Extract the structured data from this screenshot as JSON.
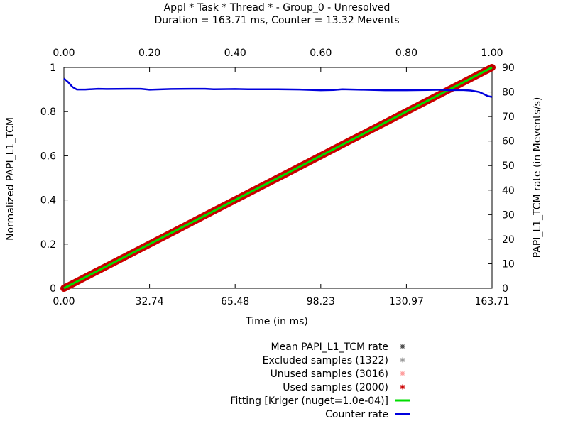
{
  "chart_data": {
    "type": "line",
    "title": "Appl * Task * Thread * - Group_0 - Unresolved",
    "subtitle": "Duration = 163.71 ms, Counter = 13.32 Mevents",
    "xlabel": "Time (in ms)",
    "ylabel": "Normalized PAPI_L1_TCM",
    "y2label": "PAPI_L1_TCM rate (in Mevents/s)",
    "xlim": [
      0,
      163.71
    ],
    "ylim": [
      0,
      1
    ],
    "x2lim": [
      0,
      1
    ],
    "y2lim": [
      0,
      90
    ],
    "x_ticks": [
      "0.00",
      "32.74",
      "65.48",
      "98.23",
      "130.97",
      "163.71"
    ],
    "x2_ticks": [
      "0.00",
      "0.20",
      "0.40",
      "0.60",
      "0.80",
      "1.00"
    ],
    "y_ticks": [
      "0",
      "0.2",
      "0.4",
      "0.6",
      "0.8",
      "1"
    ],
    "y2_ticks": [
      "0",
      "10",
      "20",
      "30",
      "40",
      "50",
      "60",
      "70",
      "80",
      "90"
    ],
    "grid": false,
    "legend_position": "bottom",
    "legend": [
      {
        "label": "Mean PAPI_L1_TCM rate",
        "symbol": "star",
        "color": "#444444"
      },
      {
        "label": "Excluded samples (1322)",
        "symbol": "star",
        "color": "#999999"
      },
      {
        "label": "Unused samples (3016)",
        "symbol": "star",
        "color": "#ff9999"
      },
      {
        "label": "Used samples (2000)",
        "symbol": "star",
        "color": "#cc0000"
      },
      {
        "label": "Fitting [Kriger (nuget=1.0e-04)]",
        "symbol": "line",
        "color": "#00dd00"
      },
      {
        "label": "Counter rate",
        "symbol": "line",
        "color": "#0000dd"
      }
    ],
    "series": [
      {
        "name": "Used samples (2000)",
        "color": "#cc0000",
        "axis": "x2y1",
        "x": [
          0.0,
          0.05,
          0.1,
          0.15,
          0.2,
          0.25,
          0.3,
          0.35,
          0.4,
          0.45,
          0.5,
          0.55,
          0.6,
          0.65,
          0.7,
          0.75,
          0.8,
          0.85,
          0.9,
          0.95,
          1.0
        ],
        "y": [
          0.0,
          0.05,
          0.1,
          0.15,
          0.2,
          0.25,
          0.3,
          0.35,
          0.4,
          0.45,
          0.5,
          0.55,
          0.6,
          0.65,
          0.7,
          0.75,
          0.8,
          0.85,
          0.9,
          0.95,
          1.0
        ]
      },
      {
        "name": "Fitting [Kriger (nuget=1.0e-04)]",
        "color": "#00dd00",
        "axis": "x2y1",
        "x": [
          0.0,
          1.0
        ],
        "y": [
          0.0,
          1.0
        ]
      },
      {
        "name": "Counter rate",
        "color": "#0000dd",
        "axis": "x2y2",
        "x": [
          0.0,
          0.01,
          0.02,
          0.03,
          0.05,
          0.08,
          0.1,
          0.15,
          0.18,
          0.2,
          0.25,
          0.3,
          0.33,
          0.35,
          0.4,
          0.43,
          0.45,
          0.5,
          0.55,
          0.6,
          0.63,
          0.65,
          0.7,
          0.75,
          0.8,
          0.85,
          0.88,
          0.9,
          0.93,
          0.95,
          0.97,
          0.98,
          0.99,
          1.0
        ],
        "y": [
          85.5,
          84,
          82,
          81,
          81,
          81.3,
          81.2,
          81.3,
          81.3,
          80.9,
          81.2,
          81.3,
          81.3,
          81.1,
          81.2,
          81.1,
          81.1,
          81.1,
          81.0,
          80.7,
          80.8,
          81.1,
          80.9,
          80.7,
          80.7,
          80.8,
          80.9,
          80.7,
          80.8,
          80.6,
          80.0,
          79.2,
          78.3,
          78.0
        ]
      }
    ]
  }
}
